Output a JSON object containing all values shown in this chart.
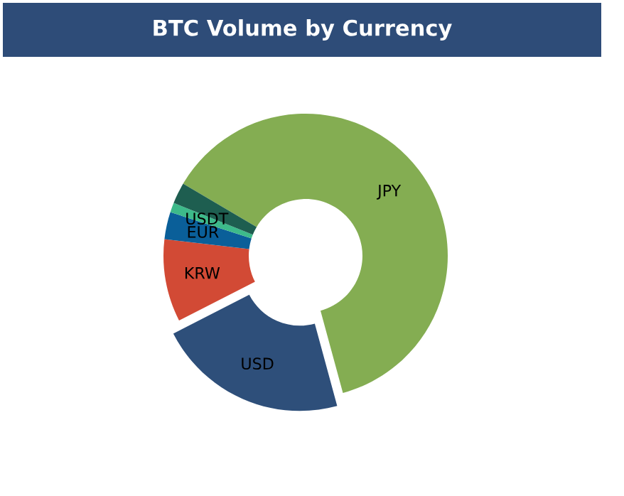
{
  "chart_data": {
    "type": "donut",
    "title": "BTC Volume by Currency",
    "categories": [
      "JPY",
      "USD",
      "KRW",
      "EUR",
      "USDT",
      null
    ],
    "values": [
      62.3,
      21.7,
      9.4,
      3.1,
      1.1,
      2.4
    ],
    "colors": [
      "#84ad52",
      "#2e4f7a",
      "#d24a35",
      "#0a5f99",
      "#3dba8a",
      "#1e5e50"
    ],
    "legend": false
  }
}
